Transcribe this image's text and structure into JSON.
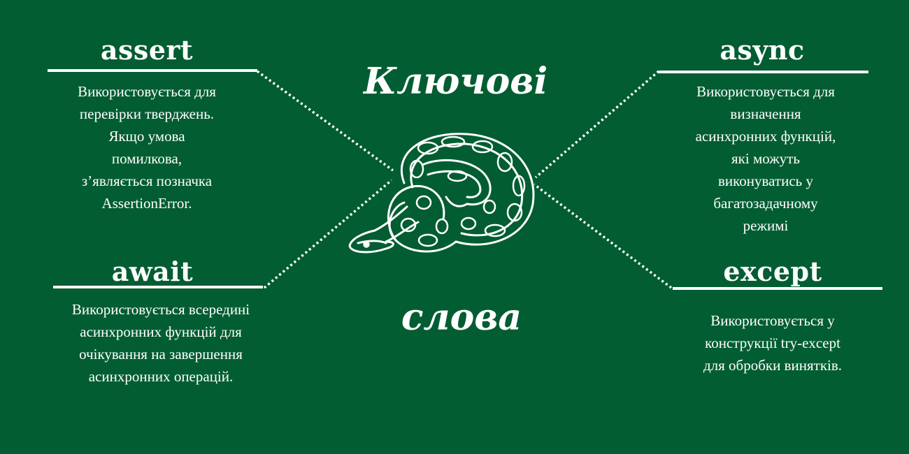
{
  "heading": {
    "line1": "Ключові",
    "line2": "слова"
  },
  "colors": {
    "background": "#035d32",
    "text": "#ffffff"
  },
  "keywords": {
    "assert": {
      "title": "assert",
      "description": [
        "Використовується для",
        "перевірки тверджень.",
        "Якщо умова",
        "помилкова,",
        "з’являється позначка",
        "AssertionError."
      ]
    },
    "await": {
      "title": "await",
      "description": [
        "Використовується всередині",
        "асинхронних функцій для",
        "очікування на завершення",
        "асинхронних операцій."
      ]
    },
    "async": {
      "title": "async",
      "description": [
        "Використовується для",
        "визначення",
        "асинхронних функцій,",
        "які можуть",
        "виконуватись у",
        "багатозадачному",
        "режимі"
      ]
    },
    "except": {
      "title": "except",
      "description": [
        "Використовується у",
        "конструкції try-except",
        "для обробки винятків."
      ]
    }
  },
  "illustration": {
    "icon": "snake-icon"
  }
}
